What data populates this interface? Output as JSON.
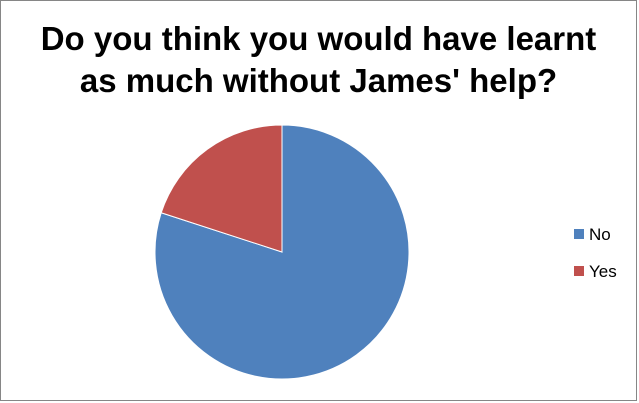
{
  "chart_data": {
    "type": "pie",
    "title_lines": [
      "Do you think you would have learnt",
      "as much without James' help?"
    ],
    "categories": [
      "No",
      "Yes"
    ],
    "values": [
      80,
      20
    ],
    "colors": [
      "#4F81BD",
      "#C0504D"
    ],
    "legend_position": "right",
    "start_angle_deg": 0,
    "direction": "clockwise"
  }
}
